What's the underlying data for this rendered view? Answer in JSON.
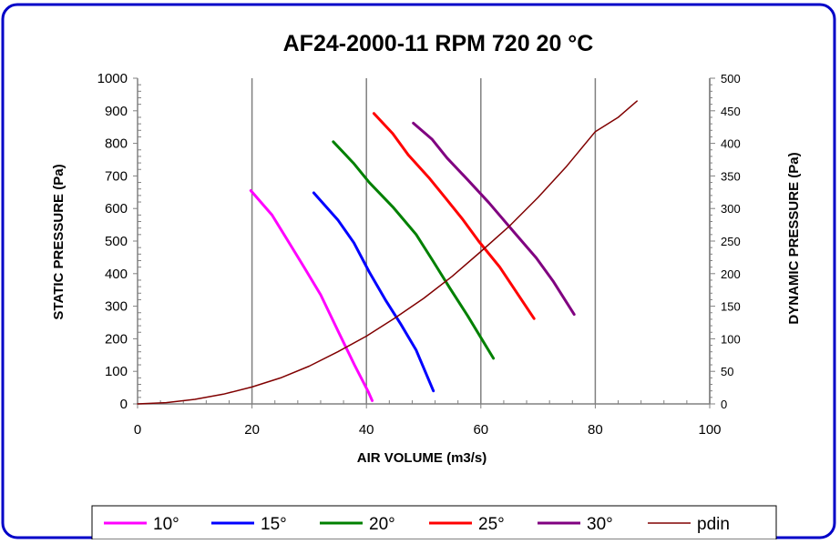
{
  "chart_data": {
    "type": "line",
    "title": "AF24-2000-11 RPM 720 20 °C",
    "xlabel": "AIR VOLUME (m3/s)",
    "ylabel": "STATIC PRESSURE (Pa)",
    "y2label": "DYNAMIC PRESSURE (Pa)",
    "xlim": [
      0,
      100
    ],
    "ylim": [
      0,
      1000
    ],
    "y2lim": [
      0,
      500
    ],
    "x_ticks": [
      "0",
      "20",
      "40",
      "60",
      "80",
      "100"
    ],
    "y_ticks": [
      "0",
      "100",
      "200",
      "300",
      "400",
      "500",
      "600",
      "700",
      "800",
      "900",
      "1000"
    ],
    "y2_ticks": [
      "0",
      "50",
      "100",
      "150",
      "200",
      "250",
      "300",
      "350",
      "400",
      "450",
      "500"
    ],
    "grid": "vertical major",
    "legend_position": "bottom",
    "series": [
      {
        "name": "10°",
        "color": "#ff00ff",
        "axis": "left",
        "points": [
          [
            19.8,
            655
          ],
          [
            23.5,
            580
          ],
          [
            26.3,
            500
          ],
          [
            29.1,
            420
          ],
          [
            32,
            335
          ],
          [
            35,
            225
          ],
          [
            37.9,
            120
          ],
          [
            40.3,
            38
          ],
          [
            41,
            10
          ]
        ]
      },
      {
        "name": "15°",
        "color": "#0000ff",
        "axis": "left",
        "points": [
          [
            30.8,
            648
          ],
          [
            35,
            565
          ],
          [
            37.8,
            495
          ],
          [
            40.5,
            405
          ],
          [
            43.3,
            320
          ],
          [
            46,
            245
          ],
          [
            48.7,
            165
          ],
          [
            51.7,
            40
          ]
        ]
      },
      {
        "name": "20°",
        "color": "#008000",
        "axis": "left",
        "points": [
          [
            34.2,
            805
          ],
          [
            37.7,
            740
          ],
          [
            40.5,
            680
          ],
          [
            44.6,
            605
          ],
          [
            48.7,
            520
          ],
          [
            51.6,
            440
          ],
          [
            54.6,
            355
          ],
          [
            57.7,
            270
          ],
          [
            62.2,
            140
          ]
        ]
      },
      {
        "name": "25°",
        "color": "#ff0000",
        "axis": "left",
        "points": [
          [
            41.3,
            892
          ],
          [
            44.6,
            830
          ],
          [
            47.3,
            765
          ],
          [
            50.9,
            695
          ],
          [
            53.7,
            635
          ],
          [
            56.9,
            565
          ],
          [
            59.6,
            500
          ],
          [
            63.3,
            420
          ],
          [
            69.3,
            262
          ]
        ]
      },
      {
        "name": "30°",
        "color": "#800080",
        "axis": "left",
        "points": [
          [
            48.2,
            862
          ],
          [
            51.5,
            812
          ],
          [
            54.1,
            755
          ],
          [
            57.7,
            688
          ],
          [
            61.4,
            618
          ],
          [
            65.9,
            525
          ],
          [
            69.7,
            448
          ],
          [
            72.7,
            375
          ],
          [
            76.3,
            275
          ]
        ]
      },
      {
        "name": "pdin",
        "color": "#800000",
        "axis": "right",
        "points": [
          [
            0,
            0
          ],
          [
            5,
            2
          ],
          [
            10,
            7
          ],
          [
            15,
            15
          ],
          [
            20,
            26
          ],
          [
            25,
            40
          ],
          [
            30,
            58
          ],
          [
            35,
            80
          ],
          [
            40,
            104
          ],
          [
            45,
            132
          ],
          [
            50,
            162
          ],
          [
            55,
            196
          ],
          [
            60,
            234
          ],
          [
            65,
            273
          ],
          [
            70,
            317
          ],
          [
            75,
            365
          ],
          [
            80,
            418
          ],
          [
            84,
            440
          ],
          [
            87.3,
            465
          ]
        ]
      }
    ]
  }
}
